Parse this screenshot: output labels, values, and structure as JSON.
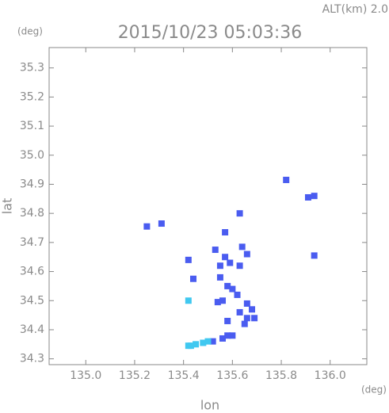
{
  "chart_data": {
    "type": "scatter",
    "title": "2015/10/23 05:03:36",
    "altitude_label": "ALT(km) 2.0",
    "y_unit": "(deg)",
    "x_unit": "(deg)",
    "x_label": "lon",
    "y_label": "lat",
    "xlim": [
      134.85,
      136.15
    ],
    "ylim": [
      34.28,
      35.37
    ],
    "xticks": [
      {
        "value": 135,
        "label": "135.0"
      },
      135.2,
      135.4,
      135.6,
      135.8,
      {
        "value": 136,
        "label": "136.0"
      }
    ],
    "yticks": [
      34.3,
      34.4,
      34.5,
      34.6,
      34.7,
      34.8,
      34.9,
      {
        "value": 35,
        "label": "35.0"
      },
      35.1,
      35.2,
      35.3
    ],
    "grid": false,
    "series": [
      {
        "color": "#4a5cf0",
        "x": [
          135.25,
          135.31,
          135.57,
          135.63,
          135.82,
          135.91,
          135.935,
          135.935,
          135.42,
          135.44,
          135.53,
          135.55,
          135.57,
          135.59,
          135.64,
          135.66,
          135.63,
          135.55,
          135.58,
          135.6,
          135.56,
          135.54,
          135.62,
          135.66,
          135.68,
          135.66,
          135.69,
          135.63,
          135.58,
          135.58,
          135.6,
          135.56,
          135.52,
          135.65
        ],
        "values": [
          34.755,
          34.765,
          34.735,
          34.8,
          34.915,
          34.855,
          34.86,
          34.655,
          34.64,
          34.575,
          34.675,
          34.62,
          34.65,
          34.63,
          34.685,
          34.66,
          34.62,
          34.58,
          34.55,
          34.54,
          34.5,
          34.495,
          34.52,
          34.49,
          34.47,
          34.44,
          34.44,
          34.46,
          34.43,
          34.38,
          34.38,
          34.37,
          34.36,
          34.42
        ]
      },
      {
        "color": "#40c8f0",
        "x": [
          135.42,
          135.42,
          135.45,
          135.48,
          135.5,
          135.43
        ],
        "values": [
          34.5,
          34.345,
          34.35,
          34.355,
          34.36,
          34.345
        ]
      }
    ]
  }
}
